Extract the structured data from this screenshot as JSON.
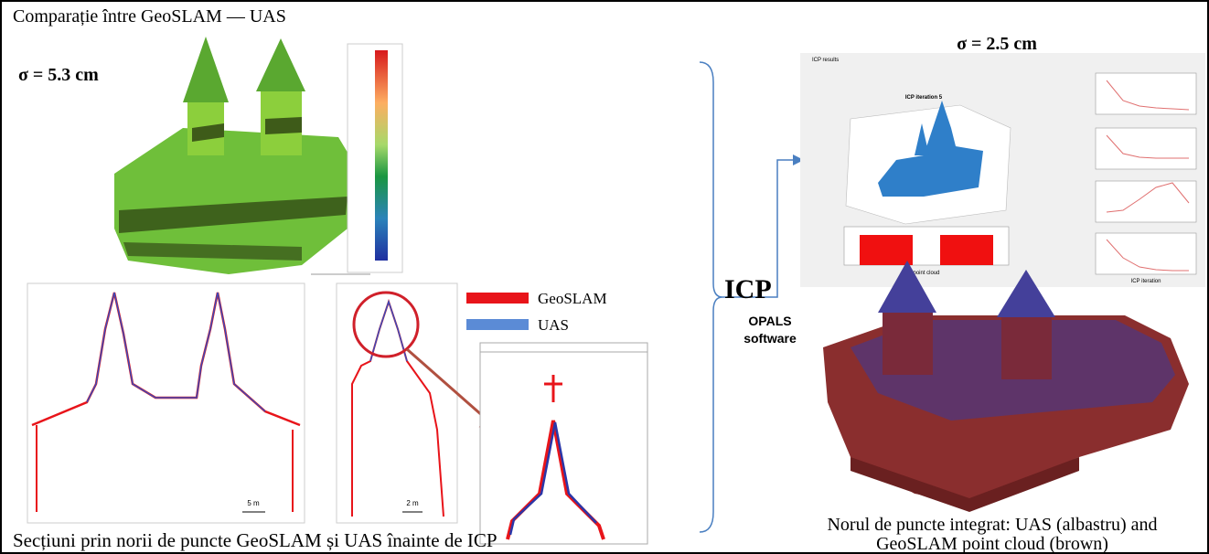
{
  "left": {
    "title": "Comparație între GeoSLAM — UAS",
    "sigma": "σ = 5.3 cm",
    "legend": [
      {
        "name": "GeoSLAM",
        "color": "#e8141a"
      },
      {
        "name": "UAS",
        "color": "#5b8bd6"
      }
    ],
    "scale_labels": [
      "5 m",
      "2 m"
    ],
    "caption": "Secțiuni prin norii de puncte GeoSLAM și UAS înainte de ICP"
  },
  "center": {
    "method": "ICP",
    "software": "OPALS software"
  },
  "right": {
    "sigma": "σ = 2.5 cm",
    "window_title": "ICP results",
    "plot_title": "ICP iteration 5",
    "bar_xlabel": "point cloud",
    "line_xlabel": "ICP iteration",
    "caption_lines": [
      "Norul de puncte integrat: UAS (albastru) and",
      "GeoSLAM point cloud (brown)"
    ]
  }
}
